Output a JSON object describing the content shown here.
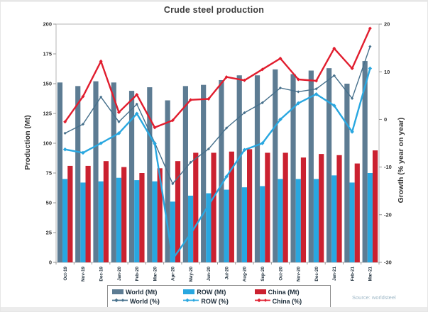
{
  "title": "Crude steel production",
  "source_note": "Source: worldsteel",
  "colors": {
    "world_bar": "#5d7c93",
    "row_bar": "#29a7e0",
    "china_bar": "#cb2130",
    "world_line": "#46708c",
    "row_line": "#29a7e0",
    "china_line": "#e11d2e",
    "axis_line": "#b5b5b5",
    "tick_mark": "#8a8a8a",
    "tick_text": "#333333",
    "x_label_text": "#1d2d3a"
  },
  "y_left": {
    "label": "Production (Mt)",
    "min": 0,
    "max": 200,
    "ticks": [
      0,
      25,
      50,
      75,
      100,
      125,
      150,
      175,
      200
    ]
  },
  "y_right": {
    "label": "Growth (% year on year)",
    "min": -30,
    "max": 20,
    "ticks": [
      -30,
      -20,
      -10,
      0,
      10,
      20
    ]
  },
  "legend": {
    "rows": [
      [
        {
          "label": "World (Mt)",
          "swatch": "bar",
          "color": "world_bar"
        },
        {
          "label": "ROW (Mt)",
          "swatch": "bar",
          "color": "row_bar"
        },
        {
          "label": "China (Mt)",
          "swatch": "bar",
          "color": "china_bar"
        }
      ],
      [
        {
          "label": "World (%)",
          "swatch": "line",
          "color": "world_line"
        },
        {
          "label": "ROW (%)",
          "swatch": "line",
          "color": "row_line"
        },
        {
          "label": "China (%)",
          "swatch": "line",
          "color": "china_line"
        }
      ]
    ]
  },
  "chart_data": {
    "type": "bar+line combo, dual axis",
    "grid": false,
    "legend_position": "bottom",
    "ylim_left": [
      0,
      200
    ],
    "ylim_right": [
      -30,
      20
    ],
    "categories": [
      "Oct-19",
      "Nov-19",
      "Dec-19",
      "Jan-20",
      "Feb-20",
      "Mar-20",
      "Apr-20",
      "May-20",
      "Jun-20",
      "Jul-20",
      "Aug-20",
      "Sep-20",
      "Oct-20",
      "Nov-20",
      "Dec-20",
      "Jan-21",
      "Feb-21",
      "Mar-21"
    ],
    "bar_series": [
      {
        "name": "World (Mt)",
        "axis": "left",
        "color": "world_bar",
        "values": [
          151,
          148,
          152,
          151,
          144,
          147,
          136,
          148,
          149,
          153,
          157,
          157,
          162,
          158,
          161,
          163,
          150,
          169
        ]
      },
      {
        "name": "ROW (Mt)",
        "axis": "left",
        "color": "row_bar",
        "values": [
          70,
          67,
          68,
          71,
          69,
          68,
          51,
          56,
          58,
          61,
          63,
          64,
          70,
          70,
          70,
          73,
          67,
          75
        ]
      },
      {
        "name": "China (Mt)",
        "axis": "left",
        "color": "china_bar",
        "values": [
          81,
          81,
          85,
          80,
          75,
          79,
          85,
          92,
          92,
          93,
          95,
          92,
          92,
          88,
          91,
          90,
          83,
          94
        ]
      }
    ],
    "line_series": [
      {
        "name": "World (%)",
        "axis": "right",
        "color": "world_line",
        "width": 1.4,
        "marker": 2.1,
        "values": [
          -2.9,
          -1.0,
          4.7,
          -0.5,
          3.2,
          -4.9,
          -13.5,
          -9.0,
          -6.2,
          -1.8,
          1.4,
          3.5,
          6.6,
          5.8,
          6.4,
          9.2,
          4.4,
          15.3
        ]
      },
      {
        "name": "ROW (%)",
        "axis": "right",
        "color": "row_line",
        "width": 2.4,
        "marker": 2.8,
        "values": [
          -6.3,
          -7.0,
          -5.0,
          -2.9,
          1.2,
          -5.1,
          -29.3,
          -24.0,
          -18.0,
          -12.0,
          -6.4,
          -5.0,
          0.0,
          3.4,
          5.3,
          2.9,
          -2.6,
          10.7
        ]
      },
      {
        "name": "China (%)",
        "axis": "right",
        "color": "china_line",
        "width": 2.4,
        "marker": 2.5,
        "values": [
          -0.5,
          4.8,
          12.2,
          1.5,
          5.2,
          -1.7,
          -0.2,
          4.1,
          4.3,
          8.9,
          8.2,
          10.5,
          12.8,
          8.4,
          8.1,
          14.9,
          10.7,
          19.1
        ]
      }
    ]
  }
}
